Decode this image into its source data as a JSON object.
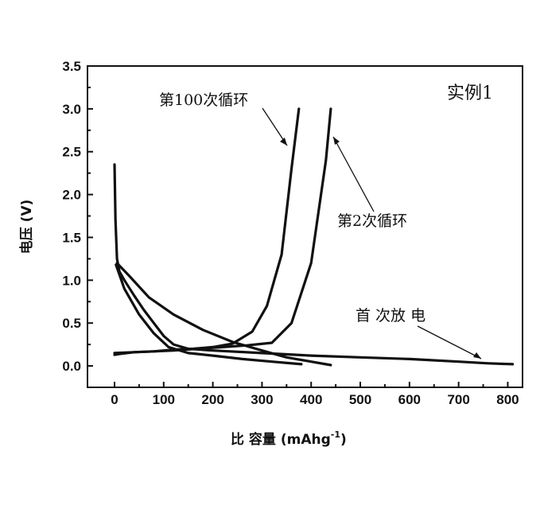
{
  "chart_data": {
    "type": "line",
    "panel_label": "实例1",
    "xlabel": "比 容量 (mAhg",
    "xlabel_sup": "-1",
    "xlabel_end": ")",
    "ylabel": "电压 (V)",
    "xlim": [
      -55,
      830
    ],
    "ylim": [
      -0.25,
      3.5
    ],
    "xticks": [
      0,
      100,
      200,
      300,
      400,
      500,
      600,
      700,
      800
    ],
    "yticks": [
      "0.0",
      "0.5",
      "1.0",
      "1.5",
      "2.0",
      "2.5",
      "3.0",
      "3.5"
    ],
    "grid": false,
    "series": [
      {
        "name": "首 次放 电",
        "x": [
          0,
          2,
          5,
          10,
          20,
          40,
          60,
          80,
          100,
          120,
          150,
          200,
          300,
          400,
          500,
          600,
          700,
          760,
          810
        ],
        "y": [
          2.35,
          1.7,
          1.25,
          1.1,
          1.0,
          0.82,
          0.65,
          0.5,
          0.35,
          0.25,
          0.2,
          0.18,
          0.15,
          0.12,
          0.1,
          0.08,
          0.05,
          0.03,
          0.02
        ]
      },
      {
        "name": "第2次循环",
        "x": [
          0,
          10,
          40,
          80,
          120,
          170,
          220,
          270,
          320,
          360,
          400,
          430,
          440
        ],
        "y": [
          0.13,
          0.14,
          0.16,
          0.17,
          0.18,
          0.2,
          0.22,
          0.24,
          0.27,
          0.5,
          1.2,
          2.4,
          3.0
        ]
      },
      {
        "name": "第2次循环",
        "x": [
          5,
          30,
          70,
          120,
          180,
          240,
          300,
          350,
          400,
          440
        ],
        "y": [
          1.2,
          1.05,
          0.8,
          0.6,
          0.42,
          0.28,
          0.18,
          0.1,
          0.05,
          0.01
        ]
      },
      {
        "name": "第100次循环",
        "x": [
          0,
          40,
          80,
          120,
          160,
          200,
          240,
          280,
          310,
          340,
          360,
          375
        ],
        "y": [
          0.15,
          0.16,
          0.17,
          0.19,
          0.2,
          0.22,
          0.26,
          0.4,
          0.7,
          1.3,
          2.3,
          3.0
        ]
      },
      {
        "name": "第100次循环",
        "x": [
          3,
          20,
          50,
          80,
          110,
          150,
          200,
          260,
          320,
          380
        ],
        "y": [
          1.18,
          0.9,
          0.6,
          0.38,
          0.22,
          0.15,
          0.12,
          0.08,
          0.05,
          0.02
        ]
      }
    ],
    "annotations": [
      {
        "text": "第100次循环"
      },
      {
        "text": "第2次循环"
      },
      {
        "text": "首 次放 电"
      }
    ]
  }
}
